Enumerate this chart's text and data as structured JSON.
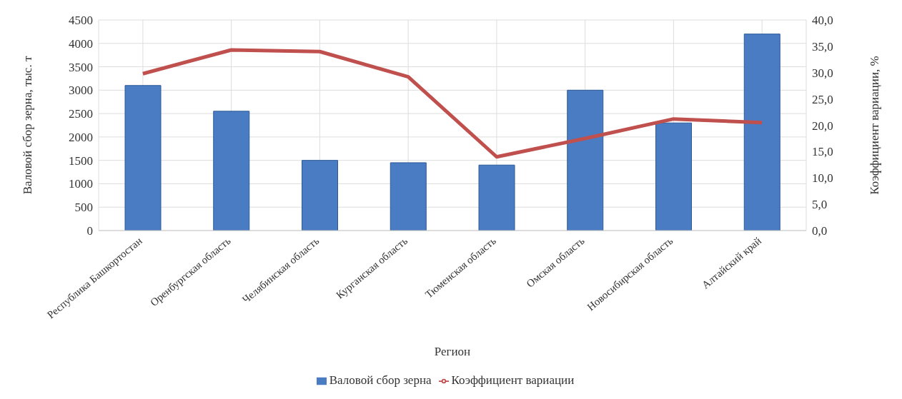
{
  "chart_data": {
    "type": "bar",
    "xlabel": "Регион",
    "ylabel": "Валовой сбор зерна, тыс. т",
    "y2label": "Коэффициент вариации, %",
    "categories": [
      "Республика Башкортостан",
      "Оренбургская область",
      "Челябинская область",
      "Курганская область",
      "Тюменская область",
      "Омская область",
      "Новосибирская область",
      "Алтайский край"
    ],
    "series": [
      {
        "name": "Валовой сбор зерна",
        "color": "#4a7cc4",
        "values": [
          3100,
          2550,
          1500,
          1450,
          1400,
          3000,
          2300,
          4200
        ]
      },
      {
        "name": "Коэффициент вариации",
        "type": "line",
        "axis": "y2",
        "color": "#c0504d",
        "values": [
          29.8,
          34.3,
          34.0,
          29.2,
          14.0,
          17.5,
          21.2,
          20.5
        ]
      }
    ],
    "ylim": [
      0,
      4500
    ],
    "yticks": [
      0,
      500,
      1000,
      1500,
      2000,
      2500,
      3000,
      3500,
      4000,
      4500
    ],
    "y2lim": [
      0,
      40
    ],
    "y2ticks": [
      {
        "value": 0,
        "label": "0,0"
      },
      {
        "value": 5,
        "label": "5,0"
      },
      {
        "value": 10,
        "label": "10,0"
      },
      {
        "value": 15,
        "label": "15,0"
      },
      {
        "value": 20,
        "label": "20,0"
      },
      {
        "value": 25,
        "label": "25,0"
      },
      {
        "value": 30,
        "label": "30,0"
      },
      {
        "value": 35,
        "label": "35,0"
      },
      {
        "value": 40,
        "label": "40,0"
      }
    ],
    "grid": true,
    "legend": "bottom",
    "marker": "none"
  }
}
